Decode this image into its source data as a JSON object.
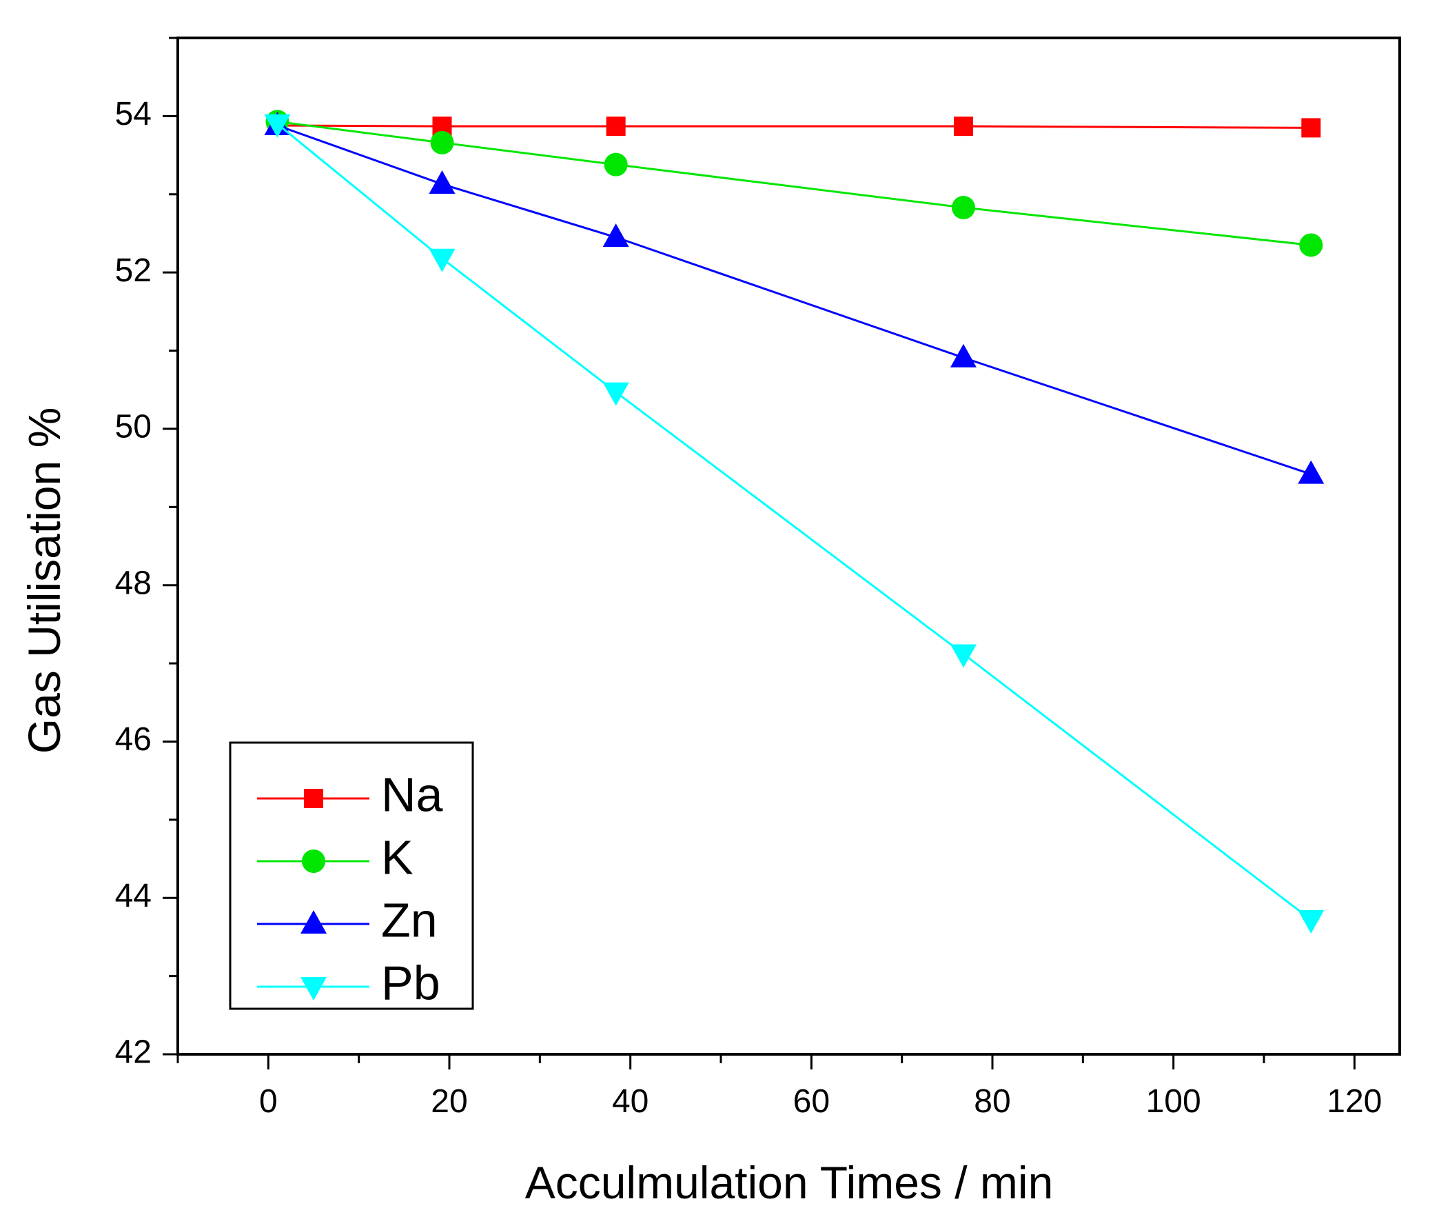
{
  "chart_data": {
    "type": "line",
    "title": "",
    "xlabel": "Acculmulation Times / min",
    "ylabel": "Gas Utilisation %",
    "xlim": [
      -10,
      125
    ],
    "ylim": [
      42,
      55
    ],
    "x_ticks": [
      0,
      20,
      40,
      60,
      80,
      100,
      120
    ],
    "y_ticks": [
      42,
      44,
      46,
      48,
      50,
      52,
      54
    ],
    "legend_position": "bottom-left",
    "grid": false,
    "series": [
      {
        "name": "Na",
        "marker": "square",
        "color": "#ff0000",
        "x": [
          1,
          19.2,
          38.4,
          76.8,
          115.2
        ],
        "y": [
          53.88,
          53.87,
          53.87,
          53.87,
          53.85
        ]
      },
      {
        "name": "K",
        "marker": "circle",
        "color": "#00e600",
        "x": [
          1,
          19.2,
          38.4,
          76.8,
          115.2
        ],
        "y": [
          53.93,
          53.66,
          53.38,
          52.83,
          52.35
        ]
      },
      {
        "name": "Zn",
        "marker": "triangle-up",
        "color": "#0000ff",
        "x": [
          1,
          19.2,
          38.4,
          76.8,
          115.2
        ],
        "y": [
          53.88,
          53.13,
          52.45,
          50.91,
          49.42
        ]
      },
      {
        "name": "Pb",
        "marker": "triangle-down",
        "color": "#00ffff",
        "x": [
          1,
          19.2,
          38.4,
          76.8,
          115.2
        ],
        "y": [
          53.9,
          52.18,
          50.47,
          47.12,
          43.72
        ]
      }
    ]
  }
}
